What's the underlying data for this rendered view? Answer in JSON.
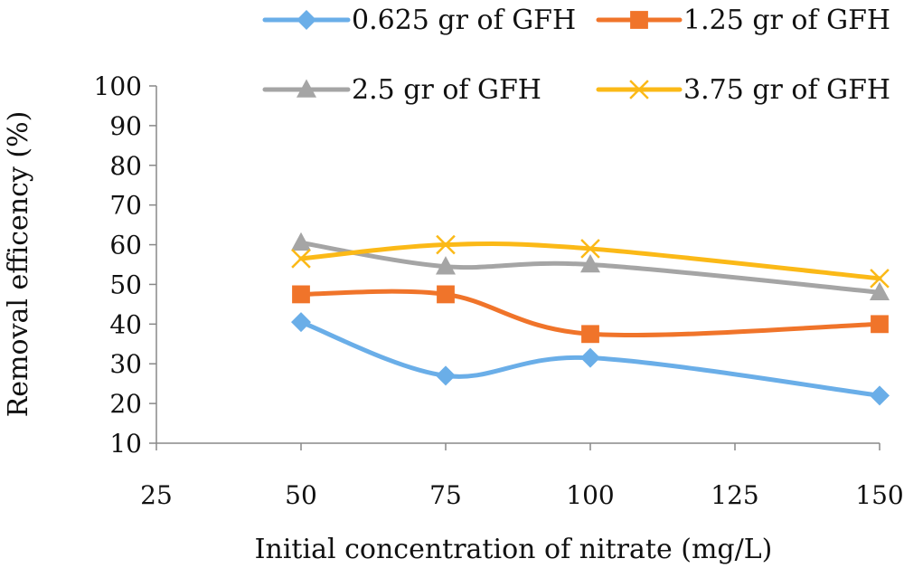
{
  "chart_data": {
    "type": "line",
    "title": "",
    "xlabel": "Initial concentration of nitrate (mg/L)",
    "ylabel": "Removal efficency (%)",
    "xlim": [
      25,
      150
    ],
    "ylim": [
      10,
      100
    ],
    "xticks": [
      25,
      50,
      75,
      100,
      125,
      150
    ],
    "yticks": [
      10,
      20,
      30,
      40,
      50,
      60,
      70,
      80,
      90,
      100
    ],
    "grid": false,
    "legend_position": "top",
    "x": [
      50,
      75,
      100,
      150
    ],
    "series": [
      {
        "name": "0.625 gr of GFH",
        "color": "#6aaee8",
        "marker": "diamond",
        "values": [
          40.5,
          27,
          31.5,
          22
        ]
      },
      {
        "name": "1.25 gr of GFH",
        "color": "#f0742a",
        "marker": "square",
        "values": [
          47.5,
          47.5,
          37.5,
          40
        ]
      },
      {
        "name": "2.5 gr of GFH",
        "color": "#a5a5a5",
        "marker": "triangle",
        "values": [
          60.5,
          54.5,
          55,
          48
        ]
      },
      {
        "name": "3.75 gr of GFH",
        "color": "#fbb917",
        "marker": "cross",
        "values": [
          56.5,
          60,
          59,
          51.5
        ]
      }
    ]
  }
}
